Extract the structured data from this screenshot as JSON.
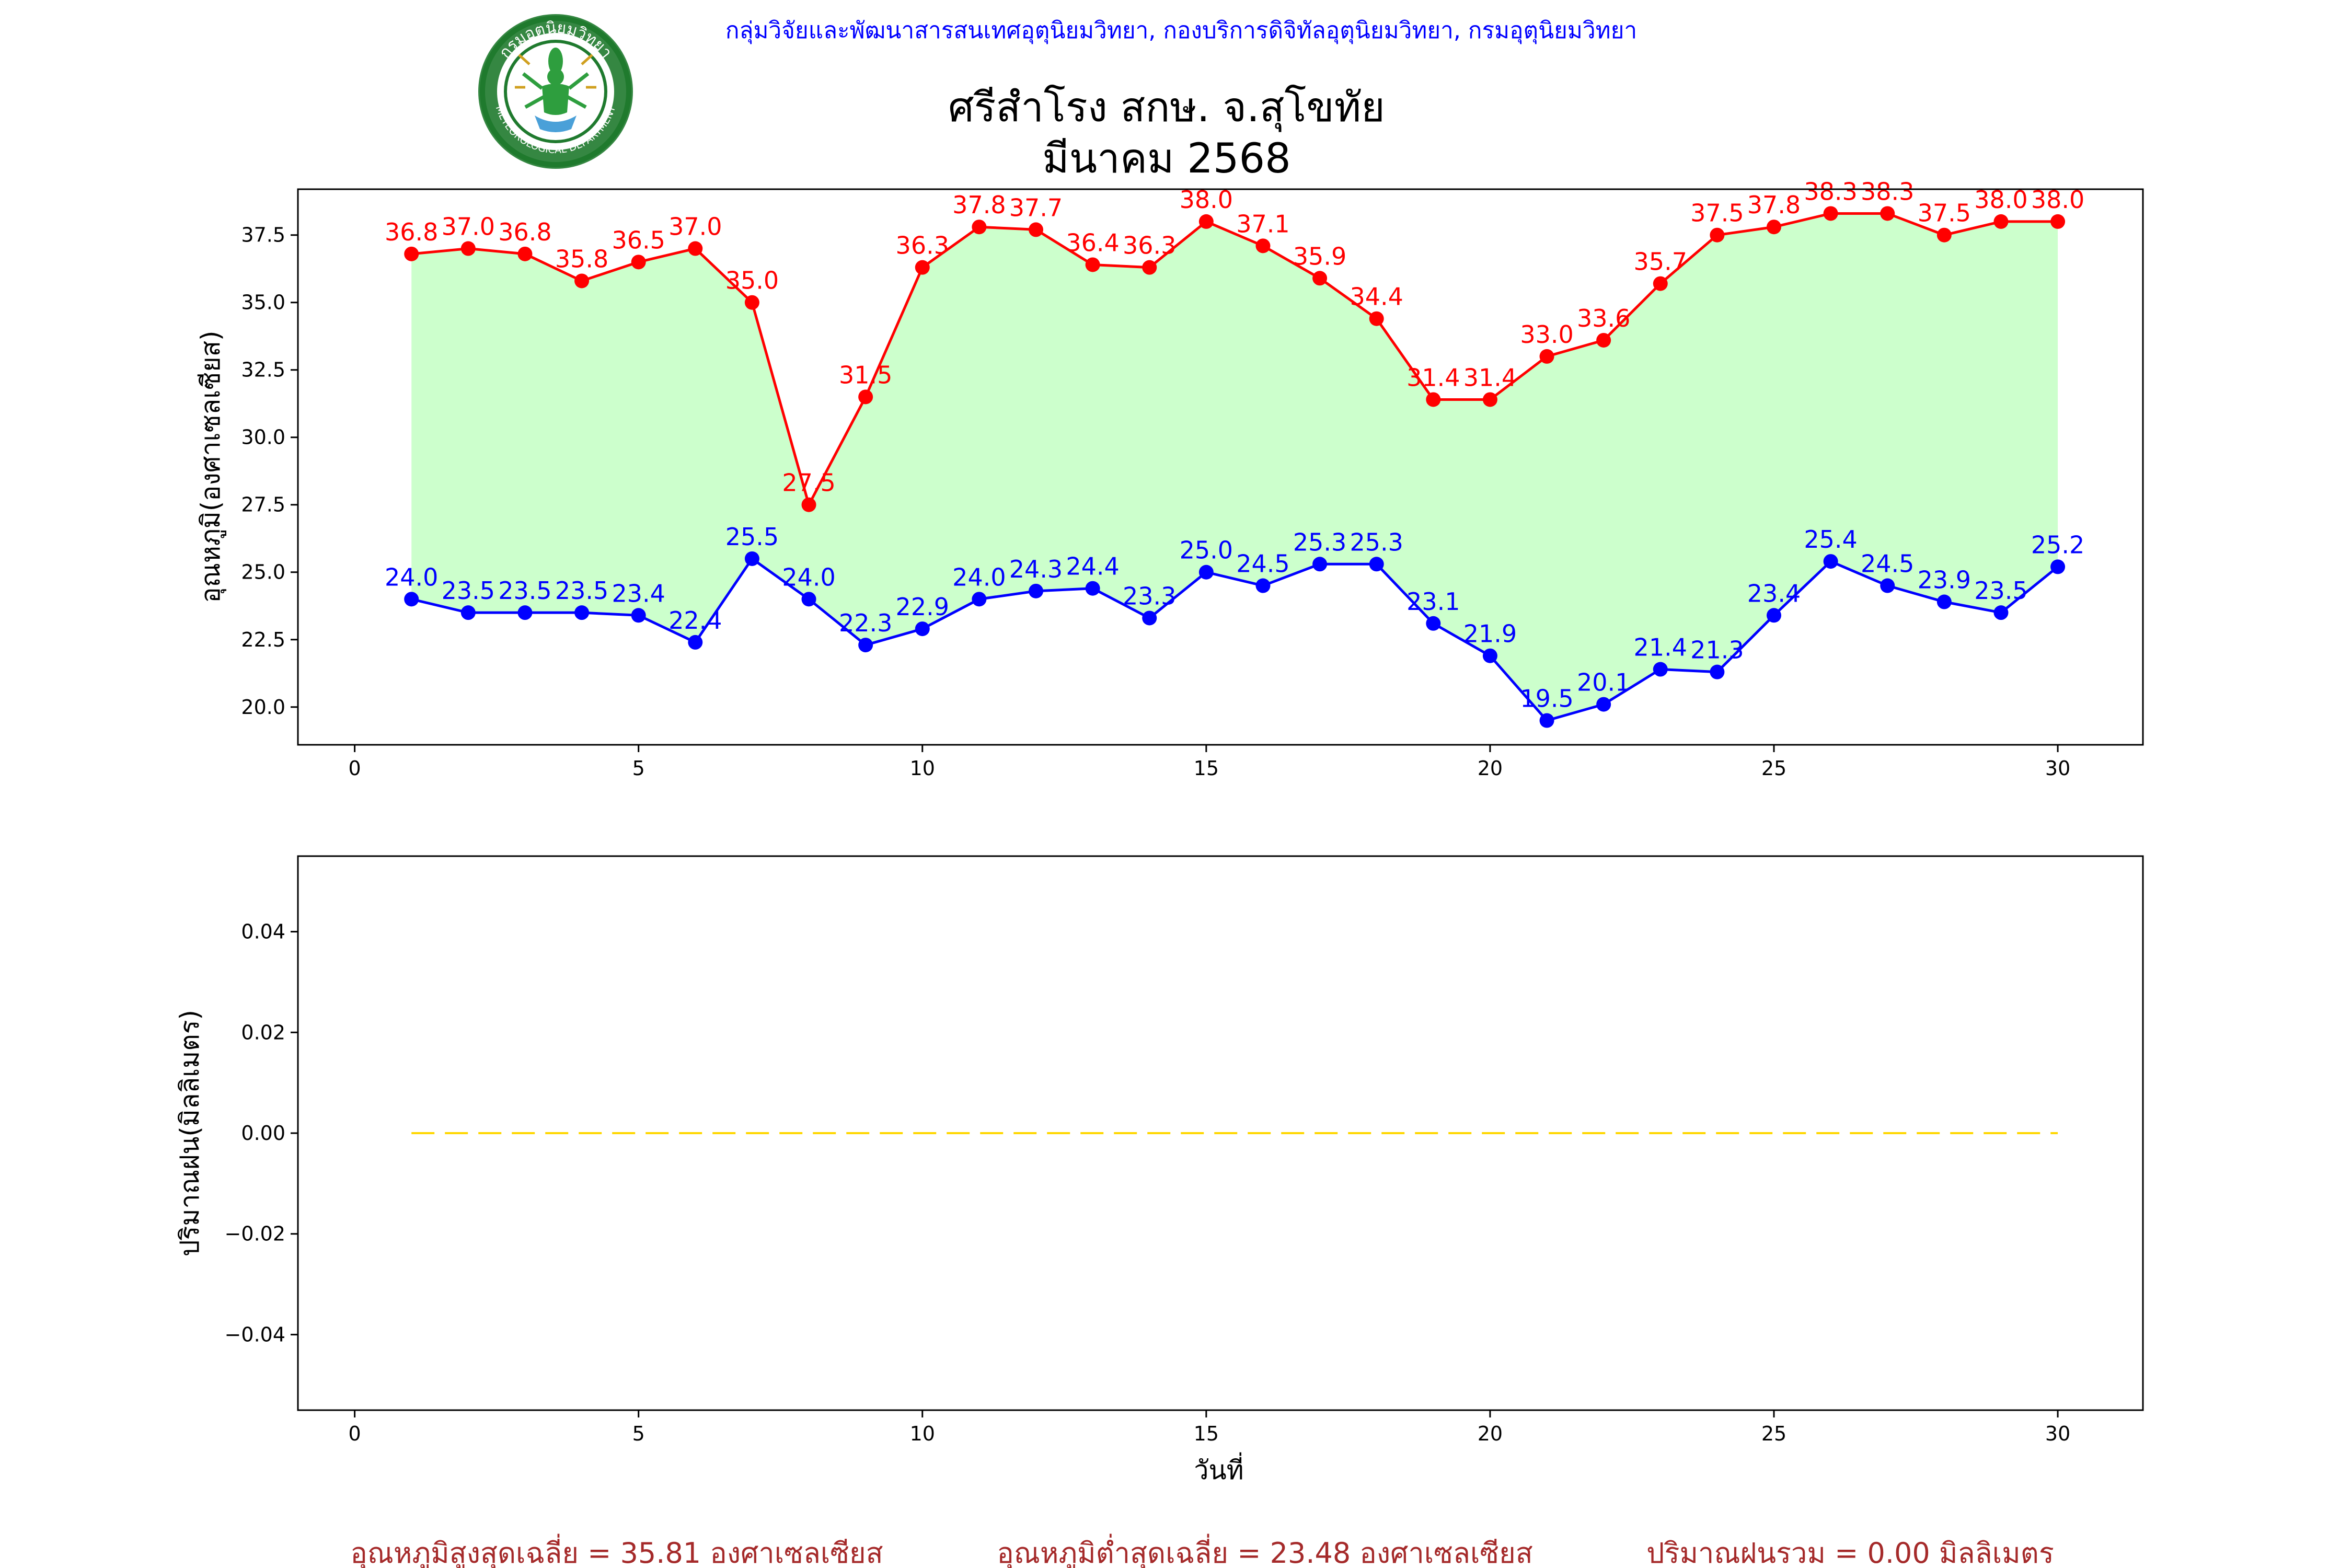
{
  "header": {
    "department": "กลุ่มวิจัยและพัฒนาสารสนเทศอุตุนิยมวิทยา, กองบริการดิจิทัลอุตุนิยมวิทยา, กรมอุตุนิยมวิทยา",
    "title_line1": "ศรีสำโรง สกษ. จ.สุโขทัย",
    "title_line2": "มีนาคม 2568"
  },
  "logo": {
    "icon": "meteorological-department-seal",
    "ring_text_top": "กรมอุตุนิยมวิทยา",
    "ring_text_bottom": "METEOROLOGICAL DEPARTMENT",
    "ring_color": "#1f7a2e",
    "figure_color": "#2e9e3e"
  },
  "chart_data": [
    {
      "type": "line",
      "ylabel": "อุณหภูมิ(องศาเซลเซียส)",
      "xlabel": "",
      "xlim": [
        -1,
        31.5
      ],
      "ylim": [
        18.6,
        39.2
      ],
      "xticks": [
        0,
        5,
        10,
        15,
        20,
        25,
        30
      ],
      "yticks": [
        20.0,
        22.5,
        25.0,
        27.5,
        30.0,
        32.5,
        35.0,
        37.5
      ],
      "grid": false,
      "fill_between_color": "#ccffcc",
      "x": [
        1,
        2,
        3,
        4,
        5,
        6,
        7,
        8,
        9,
        10,
        11,
        12,
        13,
        14,
        15,
        16,
        17,
        18,
        19,
        20,
        21,
        22,
        23,
        24,
        25,
        26,
        27,
        28,
        29,
        30
      ],
      "series": [
        {
          "color": "#ff0000",
          "values": [
            36.8,
            37.0,
            36.8,
            35.8,
            36.5,
            37.0,
            35.0,
            27.5,
            31.5,
            36.3,
            37.8,
            37.7,
            36.4,
            36.3,
            38.0,
            37.1,
            35.9,
            34.4,
            31.4,
            31.4,
            33.0,
            33.6,
            35.7,
            37.5,
            37.8,
            38.3,
            38.3,
            37.5,
            38.0,
            38.0
          ]
        },
        {
          "color": "#0000ff",
          "values": [
            24.0,
            23.5,
            23.5,
            23.5,
            23.4,
            22.4,
            25.5,
            24.0,
            22.3,
            22.9,
            24.0,
            24.3,
            24.4,
            23.3,
            25.0,
            24.5,
            25.3,
            25.3,
            23.1,
            21.9,
            19.5,
            20.1,
            21.4,
            21.3,
            23.4,
            25.4,
            24.5,
            23.9,
            23.5,
            25.2
          ]
        }
      ]
    },
    {
      "type": "line",
      "ylabel": "ปริมาณฝน(มิลลิเมตร)",
      "xlabel": "วันที่",
      "xlim": [
        -1,
        31.5
      ],
      "ylim": [
        -0.055,
        0.055
      ],
      "xticks": [
        0,
        5,
        10,
        15,
        20,
        25,
        30
      ],
      "yticks": [
        -0.04,
        -0.02,
        0.0,
        0.02,
        0.04
      ],
      "grid": false,
      "x": [
        1,
        2,
        3,
        4,
        5,
        6,
        7,
        8,
        9,
        10,
        11,
        12,
        13,
        14,
        15,
        16,
        17,
        18,
        19,
        20,
        21,
        22,
        23,
        24,
        25,
        26,
        27,
        28,
        29,
        30
      ],
      "series": [
        {
          "color": "#ffd700",
          "linestyle": "dashed",
          "values": [
            0,
            0,
            0,
            0,
            0,
            0,
            0,
            0,
            0,
            0,
            0,
            0,
            0,
            0,
            0,
            0,
            0,
            0,
            0,
            0,
            0,
            0,
            0,
            0,
            0,
            0,
            0,
            0,
            0,
            0
          ]
        }
      ]
    }
  ],
  "footer": {
    "avg_max": "อุณหภูมิสูงสุดเฉลี่ย = 35.81 องศาเซลเซียส",
    "avg_min": "อุณหภูมิต่ำสุดเฉลี่ย = 23.48 องศาเซลเซียส",
    "total_rain": "ปริมาณฝนรวม = 0.00 มิลลิเมตร",
    "color": "#a52a2a"
  }
}
